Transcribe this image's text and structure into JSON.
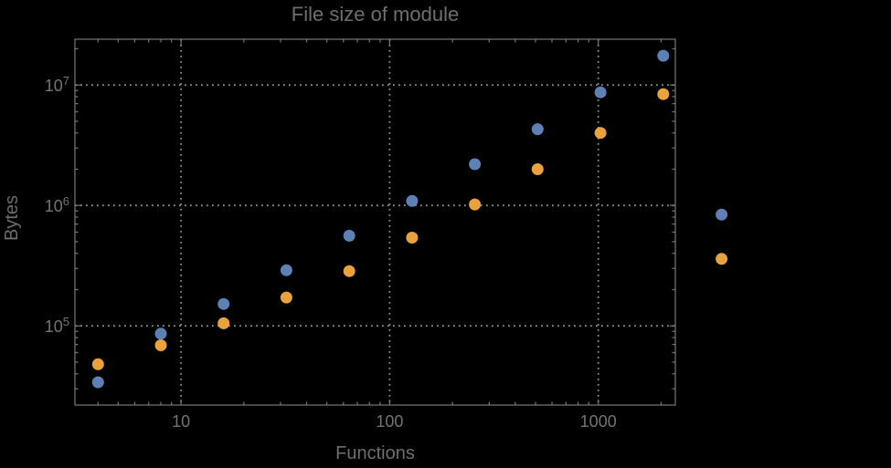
{
  "style": {
    "background_color": "#000000",
    "frame_color": "#787878",
    "tick_color": "#787878",
    "grid_color": "#8e8e8e",
    "text_color": "#6e6e6e",
    "tick_label_color": "#747474"
  },
  "chart_data": {
    "type": "scatter",
    "title": "File size of module",
    "xlabel": "Functions",
    "ylabel": "Bytes",
    "x_scale": "log",
    "y_scale": "log",
    "grid": "dotted",
    "legend": "none",
    "xlim": [
      3.1,
      2340
    ],
    "ylim": [
      22000,
      24000000
    ],
    "x_ticks": [
      {
        "label": "10",
        "value": 10
      },
      {
        "label": "100",
        "value": 100
      },
      {
        "label": "1000",
        "value": 1000
      }
    ],
    "y_ticks": [
      {
        "base": "10",
        "exp": "5",
        "value": 100000
      },
      {
        "base": "10",
        "exp": "6",
        "value": 1000000
      },
      {
        "base": "10",
        "exp": "7",
        "value": 10000000
      }
    ],
    "x": [
      4,
      8,
      16,
      32,
      64,
      128,
      256,
      512,
      1024,
      2048,
      3900
    ],
    "series": [
      {
        "name": "blue",
        "color": "#5e81b5",
        "values": [
          34000,
          86000,
          152000,
          290000,
          560000,
          1090000,
          2200000,
          4300000,
          8700000,
          17500000,
          840000
        ]
      },
      {
        "name": "orange",
        "color": "#e9a23c",
        "values": [
          48000,
          69000,
          105000,
          172000,
          285000,
          540000,
          1020000,
          2000000,
          4000000,
          8400000,
          360000
        ]
      }
    ],
    "note_points_outside_frame": "last pair of points lies right of the plot frame"
  }
}
